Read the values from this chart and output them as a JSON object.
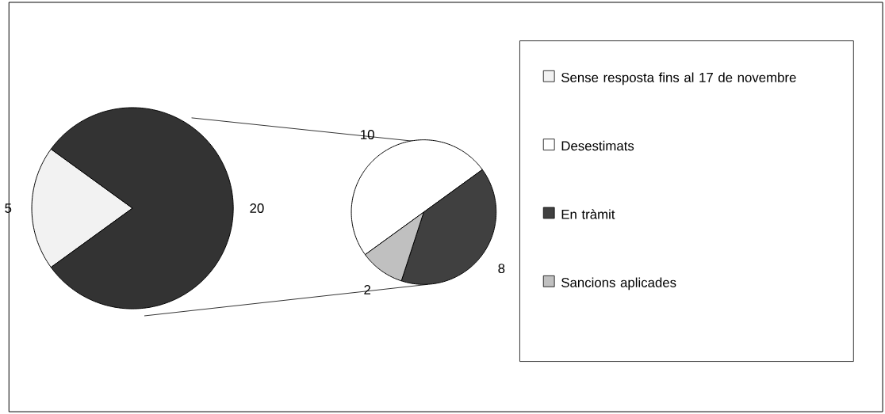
{
  "chart_data": [
    {
      "type": "pie",
      "categories": [
        "Sense resposta fins al 17 de novembre",
        null
      ],
      "values": [
        5,
        20
      ],
      "colors": [
        "#f2f2f2",
        "#333333"
      ],
      "data_labels": true,
      "legend": "right"
    },
    {
      "type": "pie",
      "categories": [
        "Desestimats",
        "En tràmit",
        "Sancions aplicades"
      ],
      "values": [
        10,
        8,
        2
      ],
      "colors": [
        "#ffffff",
        "#404040",
        "#c0c0c0"
      ],
      "data_labels": true,
      "legend": "right"
    }
  ]
}
